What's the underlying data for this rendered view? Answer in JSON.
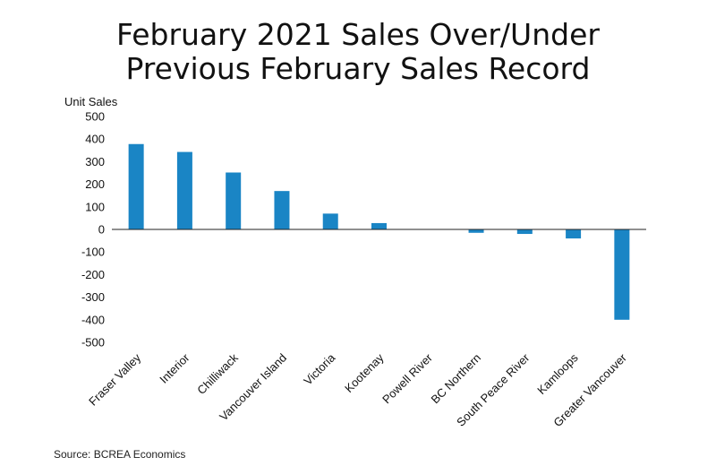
{
  "chart_data": {
    "type": "bar",
    "title_line1": "February 2021 Sales Over/Under",
    "title_line2": "Previous February Sales Record",
    "ylabel": "Unit Sales",
    "xlabel": "",
    "ylim": [
      -500,
      500
    ],
    "yticks": [
      500,
      400,
      300,
      200,
      100,
      0,
      -100,
      -200,
      -300,
      -400,
      -500
    ],
    "categories": [
      "Fraser Valley",
      "Interior",
      "Chilliwack",
      "Vancouver Island",
      "Victoria",
      "Kootenay",
      "Powell River",
      "BC Northern",
      "South Peace River",
      "Kamloops",
      "Greater Vancouver"
    ],
    "values": [
      378,
      343,
      252,
      170,
      70,
      28,
      0,
      -15,
      -20,
      -40,
      -400
    ],
    "bar_color": "#1a85c5",
    "grid": false,
    "legend": "none"
  },
  "footer": {
    "source": "Source: BCREA Economics"
  }
}
